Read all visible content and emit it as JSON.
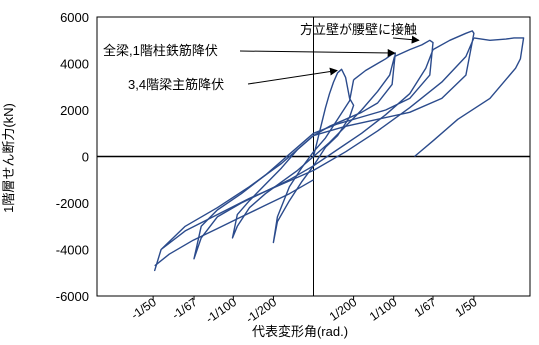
{
  "chart_data": {
    "type": "line",
    "title": "",
    "xlabel": "代表変形角(rad.)",
    "ylabel": "1階層せん断力(kN)",
    "ylim": [
      -6000,
      6000
    ],
    "yticks": [
      -6000,
      -4000,
      -2000,
      0,
      2000,
      4000,
      6000
    ],
    "xlim": [
      -0.027,
      0.027
    ],
    "xticks": [
      {
        "value": -0.02,
        "label": "-1/50"
      },
      {
        "value": -0.0149,
        "label": "-1/67"
      },
      {
        "value": -0.01,
        "label": "-1/100"
      },
      {
        "value": -0.005,
        "label": "-1/200"
      },
      {
        "value": 0.005,
        "label": "1/200"
      },
      {
        "value": 0.01,
        "label": "1/100"
      },
      {
        "value": 0.0149,
        "label": "1/67"
      },
      {
        "value": 0.02,
        "label": "1/50"
      }
    ],
    "grid": false,
    "legend": "none",
    "series_color": "#2b4b8c",
    "annotations": [
      {
        "text": "方立壁が腰壁に接触",
        "points_to": [
          0.0135,
          5000
        ]
      },
      {
        "text": "全梁,1階柱鉄筋降伏",
        "points_to": [
          0.0105,
          4450
        ]
      },
      {
        "text": "3,4階梁主筋降伏",
        "points_to": [
          0.0033,
          3700
        ]
      }
    ],
    "series": [
      {
        "x": [
          0,
          0.0005,
          0.001,
          0.0015,
          0.002,
          0.0025,
          0.003,
          0.0035,
          0.004,
          0.0045,
          0.005,
          0.0045,
          0.003,
          0.0015,
          0,
          -0.0015,
          -0.003,
          -0.0045,
          -0.005,
          -0.0045,
          -0.003,
          -0.0015,
          0,
          0.0015,
          0.003,
          0.0045,
          0.005
        ],
        "y": [
          0,
          700,
          1400,
          2100,
          2700,
          3200,
          3600,
          3750,
          3400,
          2500,
          2200,
          1700,
          900,
          400,
          -400,
          -1100,
          -1900,
          -2800,
          -3700,
          -2600,
          -1300,
          -500,
          200,
          800,
          1600,
          2400,
          3300
        ]
      },
      {
        "x": [
          0.005,
          0.0065,
          0.008,
          0.009,
          0.0098,
          0.0102,
          0.0098,
          0.008,
          0.006,
          0.004,
          0.002,
          0,
          -0.002,
          -0.004,
          -0.006,
          -0.008,
          -0.0095,
          -0.0101,
          -0.0095,
          -0.008,
          -0.006,
          -0.004,
          -0.002,
          0,
          0.002,
          0.004,
          0.006,
          0.008,
          0.0095,
          0.0101
        ],
        "y": [
          3300,
          3700,
          4000,
          4200,
          4400,
          4450,
          3100,
          2300,
          1900,
          1600,
          1300,
          900,
          300,
          -500,
          -1200,
          -1900,
          -2500,
          -3500,
          -3000,
          -2200,
          -1600,
          -1100,
          -600,
          0,
          600,
          1300,
          2000,
          2800,
          3500,
          4300
        ]
      },
      {
        "x": [
          0.0101,
          0.012,
          0.0135,
          0.0145,
          0.0149,
          0.0145,
          0.012,
          0.009,
          0.006,
          0.003,
          0,
          -0.003,
          -0.006,
          -0.009,
          -0.012,
          -0.014,
          -0.0149,
          -0.014,
          -0.012,
          -0.009,
          -0.006,
          -0.003,
          0,
          0.003,
          0.006,
          0.009,
          0.012,
          0.014,
          0.0149
        ],
        "y": [
          4300,
          4600,
          4800,
          5000,
          4900,
          3500,
          2500,
          2000,
          1700,
          1400,
          1000,
          100,
          -800,
          -1600,
          -2300,
          -3000,
          -4400,
          -3500,
          -2600,
          -2000,
          -1500,
          -1000,
          -400,
          300,
          1000,
          1800,
          2700,
          3800,
          4600
        ]
      },
      {
        "x": [
          0.0149,
          0.017,
          0.019,
          0.0198,
          0.02,
          0.019,
          0.016,
          0.012,
          0.008,
          0.004,
          0,
          -0.004,
          -0.008,
          -0.012,
          -0.016,
          -0.019,
          -0.0198,
          -0.019,
          -0.016,
          -0.012,
          -0.008,
          -0.004,
          0,
          0.004,
          0.008,
          0.012,
          0.016,
          0.019,
          0.02
        ],
        "y": [
          4600,
          5000,
          5300,
          5400,
          5300,
          3500,
          2500,
          1900,
          1600,
          1300,
          900,
          -300,
          -1300,
          -2200,
          -3000,
          -4000,
          -4900,
          -4000,
          -3200,
          -2500,
          -1800,
          -1200,
          -600,
          200,
          1100,
          2100,
          3200,
          4300,
          5100
        ]
      },
      {
        "x": [
          0.02,
          0.022,
          0.024,
          0.025,
          0.0258,
          0.0262,
          0.0258,
          0.0252,
          0.022,
          0.018,
          0.015,
          0.0126
        ],
        "y": [
          5100,
          5000,
          5050,
          5100,
          5100,
          5100,
          4200,
          3800,
          2500,
          1600,
          700,
          0
        ]
      },
      {
        "x": [
          -0.0198,
          -0.018,
          -0.015,
          -0.012,
          -0.009,
          -0.006,
          -0.003,
          0
        ],
        "y": [
          -4700,
          -4200,
          -3600,
          -3100,
          -2600,
          -2100,
          -1600,
          -1000
        ]
      }
    ]
  }
}
